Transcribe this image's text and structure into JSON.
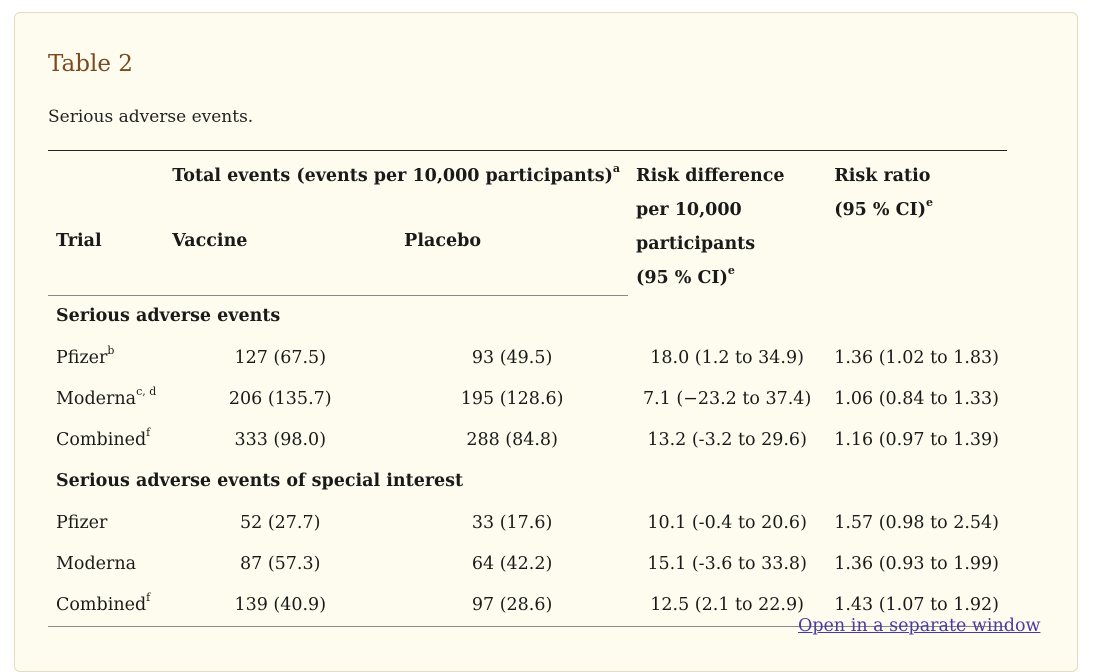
{
  "title": "Table 2",
  "caption": "Serious adverse events.",
  "header": {
    "total_events": "Total events (events per 10,000 participants)",
    "total_events_sup": "a",
    "trial": "Trial",
    "vaccine": "Vaccine",
    "placebo": "Placebo",
    "risk_difference_line1": "Risk difference",
    "risk_difference_line2": "per 10,000 participants",
    "risk_difference_line3": "(95 % CI)",
    "risk_difference_sup": "e",
    "risk_ratio_line1": "Risk ratio",
    "risk_ratio_line2": "(95 % CI)",
    "risk_ratio_sup": "e"
  },
  "sections": [
    {
      "label": "Serious adverse events",
      "rows": [
        {
          "trial": "Pfizer",
          "sup": "b",
          "vaccine": "127 (67.5)",
          "placebo": "93 (49.5)",
          "risk_difference": "18.0 (1.2 to 34.9)",
          "risk_ratio": "1.36 (1.02 to 1.83)"
        },
        {
          "trial": "Moderna",
          "sup": "c, d",
          "vaccine": "206 (135.7)",
          "placebo": "195 (128.6)",
          "risk_difference": "7.1 (−23.2 to 37.4)",
          "risk_ratio": "1.06 (0.84 to 1.33)"
        },
        {
          "trial": "Combined",
          "sup": "f",
          "vaccine": "333 (98.0)",
          "placebo": "288 (84.8)",
          "risk_difference": "13.2 (-3.2 to 29.6)",
          "risk_ratio": "1.16 (0.97 to 1.39)"
        }
      ]
    },
    {
      "label": "Serious adverse events of special interest",
      "rows": [
        {
          "trial": "Pfizer",
          "sup": "",
          "vaccine": "52 (27.7)",
          "placebo": "33 (17.6)",
          "risk_difference": "10.1 (-0.4 to 20.6)",
          "risk_ratio": "1.57 (0.98 to 2.54)"
        },
        {
          "trial": "Moderna",
          "sup": "",
          "vaccine": "87 (57.3)",
          "placebo": "64 (42.2)",
          "risk_difference": "15.1 (-3.6 to 33.8)",
          "risk_ratio": "1.36 (0.93 to 1.99)"
        },
        {
          "trial": "Combined",
          "sup": "f",
          "vaccine": "139 (40.9)",
          "placebo": "97 (28.6)",
          "risk_difference": "12.5 (2.1 to 22.9)",
          "risk_ratio": "1.43 (1.07 to 1.92)"
        }
      ]
    }
  ],
  "open_link": "Open in a separate window"
}
